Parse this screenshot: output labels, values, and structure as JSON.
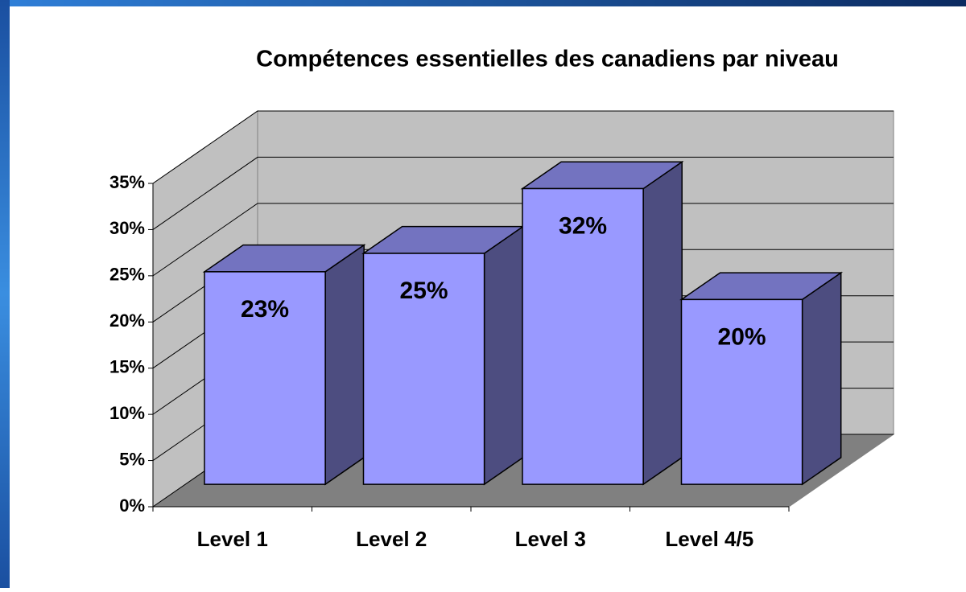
{
  "chart_data": {
    "type": "bar3d",
    "title": "Compétences essentielles des canadiens par niveau",
    "categories": [
      "Level 1",
      "Level 2",
      "Level 3",
      "Level 4/5"
    ],
    "values": [
      23,
      25,
      32,
      20
    ],
    "value_labels": [
      "23%",
      "25%",
      "32%",
      "20%"
    ],
    "color": "#9999ff",
    "ylim": [
      0,
      35
    ],
    "yticks": [
      {
        "value": 0,
        "label": "0%"
      },
      {
        "value": 5,
        "label": "5%"
      },
      {
        "value": 10,
        "label": "10%"
      },
      {
        "value": 15,
        "label": "15%"
      },
      {
        "value": 20,
        "label": "20%"
      },
      {
        "value": 25,
        "label": "25%"
      },
      {
        "value": 30,
        "label": "30%"
      },
      {
        "value": 35,
        "label": "35%"
      }
    ],
    "grid": true
  }
}
